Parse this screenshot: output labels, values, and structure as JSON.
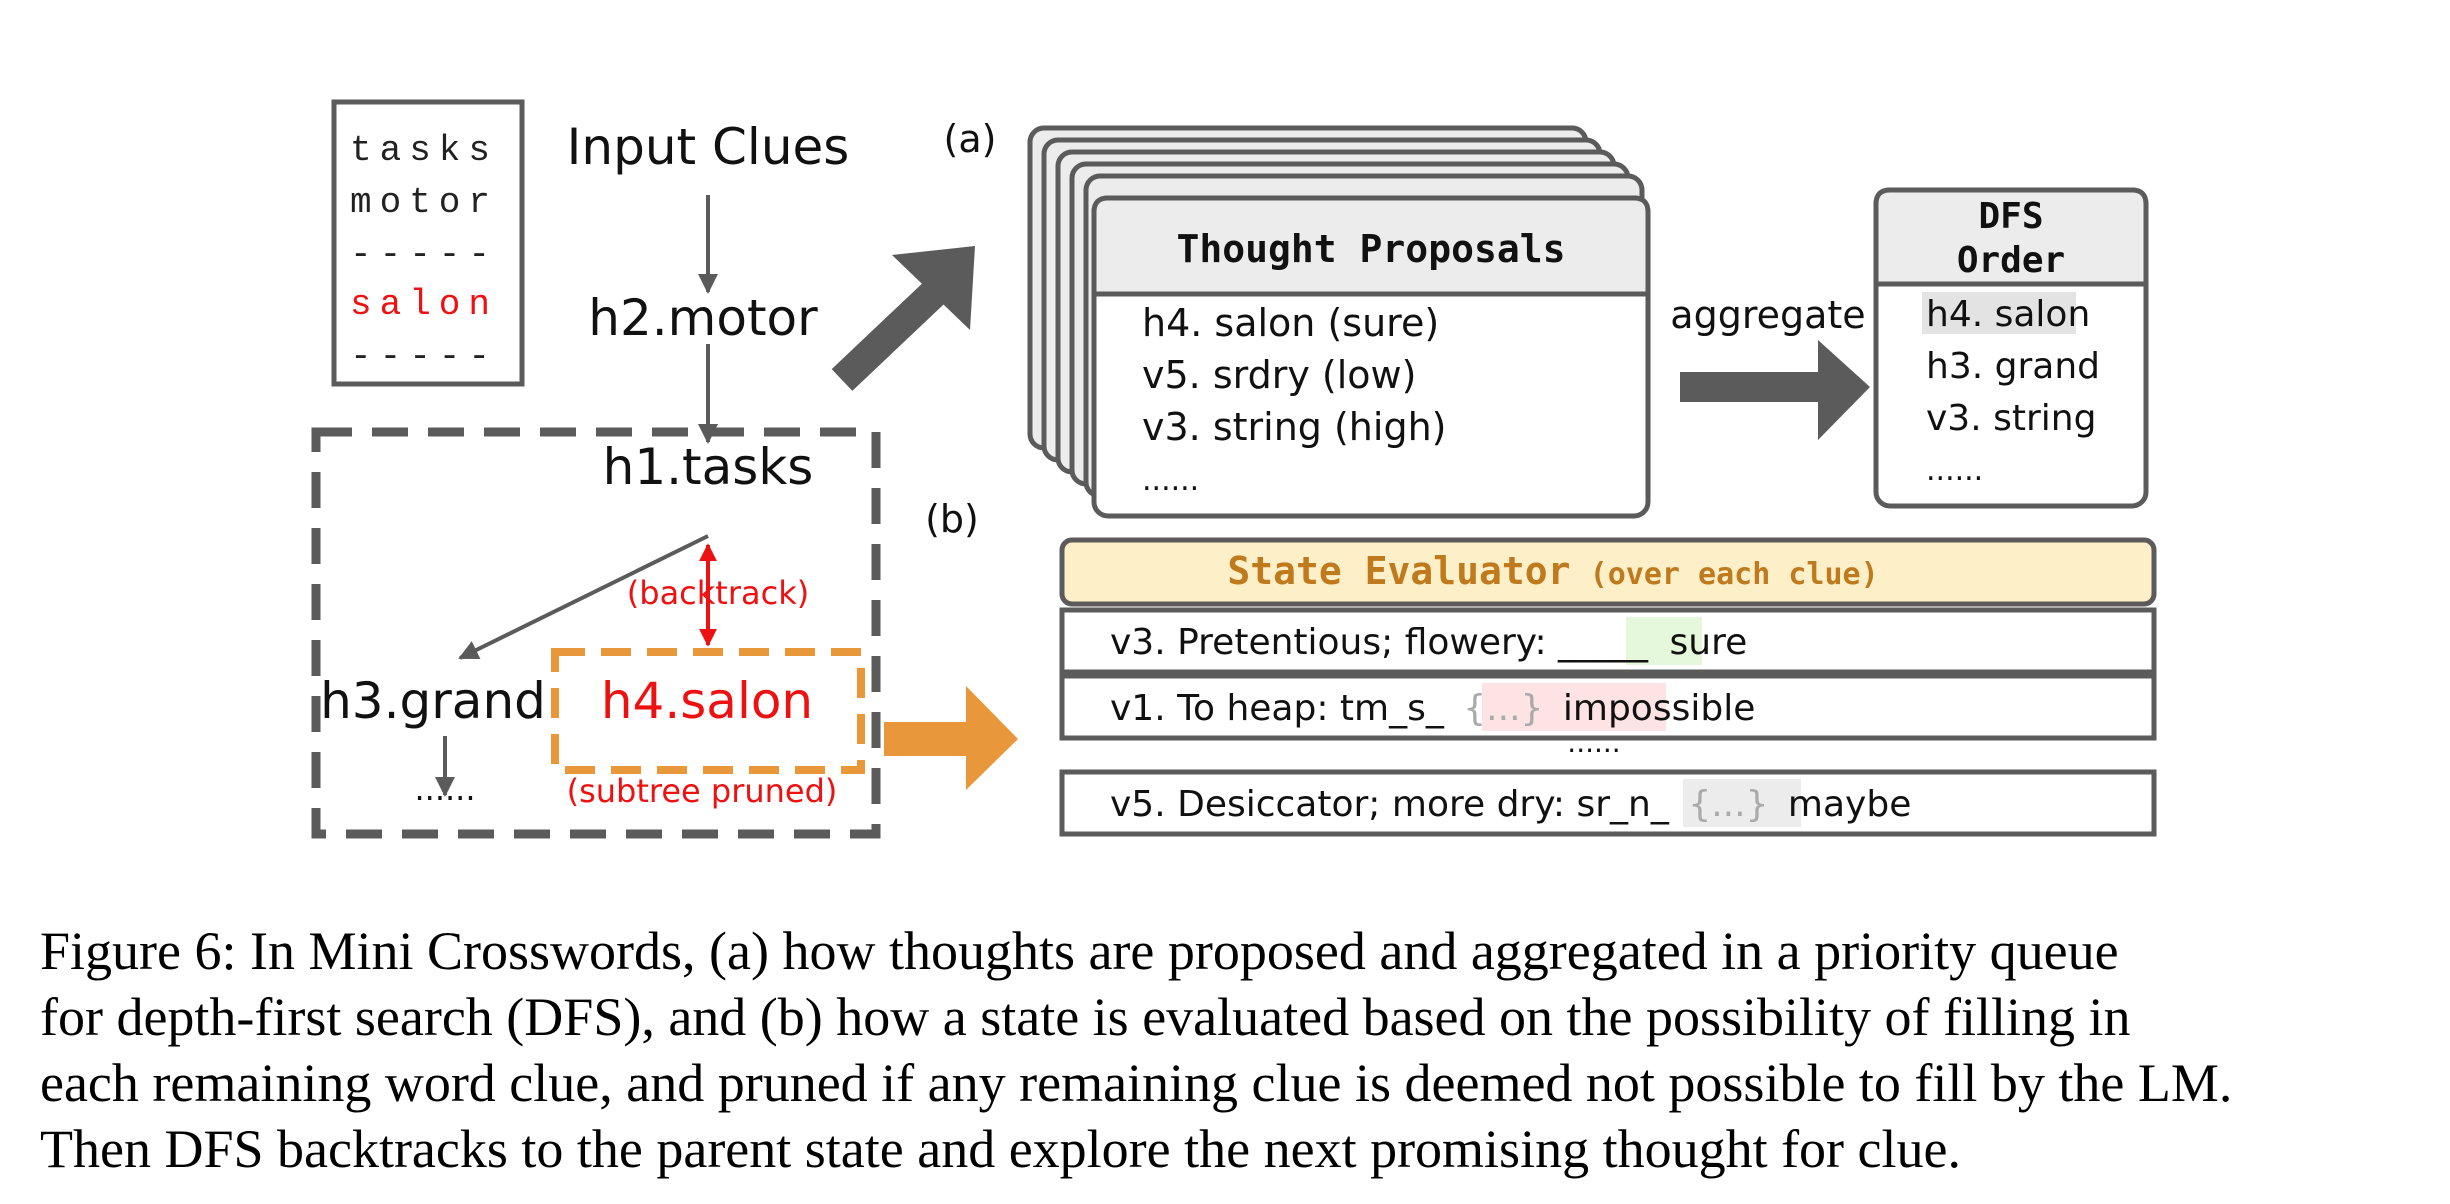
{
  "figure": {
    "grid_words": [
      "tasks",
      "motor",
      "-----",
      "salon",
      "-----"
    ],
    "tree": {
      "input_clues": "Input Clues",
      "n_motor": "h2.motor",
      "n_tasks": "h1.tasks",
      "n_grand": "h3.grand",
      "n_salon": "h4.salon",
      "backtrack": "(backtrack)",
      "pruned": "(subtree pruned)",
      "ellipsis": "......"
    },
    "label_a": "(a)",
    "label_b": "(b)",
    "proposals": {
      "title": "Thought Proposals",
      "items": [
        "h4. salon (sure)",
        "v5. srdry (low)",
        "v3. string (high)",
        "......"
      ]
    },
    "aggregate_label": "aggregate",
    "dfs": {
      "title_line1": "DFS",
      "title_line2": "Order",
      "items": [
        "h4. salon",
        "h3. grand",
        "v3. string",
        "......"
      ]
    },
    "evaluator": {
      "title": "State Evaluator",
      "subtitle": "(over each clue)",
      "rows": [
        {
          "clue": "v3. Pretentious; flowery: _____",
          "gap": "",
          "verdict": "sure"
        },
        {
          "clue": "v1. To heap: tm_s_",
          "gap": "{...}",
          "verdict": "impossible"
        },
        {
          "clue": "v5. Desiccator; more dry: sr_n_",
          "gap": "{...}",
          "verdict": "maybe"
        }
      ],
      "ellipsis": "......"
    },
    "colors": {
      "gray": "#5b5b5b",
      "red": "#ee1111",
      "orange": "#e8973a",
      "evaluator_fill": "#fdefc8",
      "sure_bg": "#e6f8dc",
      "impossible_bg": "#fde3e3",
      "maybe_bg": "#ececec"
    }
  },
  "caption": {
    "lines": [
      "Figure 6: In Mini Crosswords, (a) how thoughts are proposed and aggregated in a priority queue",
      "for depth-first search (DFS), and (b) how a state is evaluated based on the possibility of filling in",
      "each remaining word clue, and pruned if any remaining clue is deemed not possible to fill by the LM.",
      "Then DFS backtracks to the parent state and explore the next promising thought for clue."
    ]
  }
}
